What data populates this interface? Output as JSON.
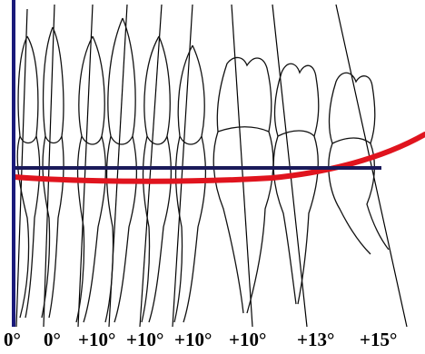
{
  "figure": {
    "description_kind": "dental-arch-axial-inclination-tracing",
    "colors": {
      "vertical_axis": "#1a1a7a",
      "occlusal_plane": "#1a1a5a",
      "curve_of_spee": "#e0141e",
      "tooth_outline": "#111111"
    },
    "angle_labels": [
      "0°",
      "0°",
      "+10°",
      "+10°",
      "+10°",
      "+10°",
      "+13°",
      "+15°"
    ]
  }
}
